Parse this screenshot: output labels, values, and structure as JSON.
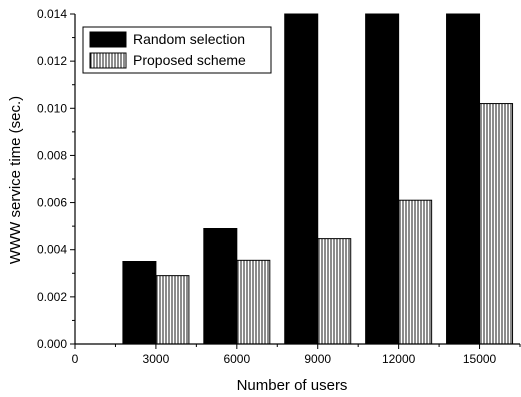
{
  "chart_data": {
    "type": "bar",
    "xlabel": "Number of users",
    "ylabel": "WWW service time (sec.)",
    "categories": [
      "3000",
      "6000",
      "9000",
      "12000",
      "15000"
    ],
    "x_values": [
      3000,
      6000,
      9000,
      12000,
      15000
    ],
    "xlim": [
      0,
      16500
    ],
    "ylim": [
      0,
      0.014
    ],
    "x_ticks": [
      "0",
      "3000",
      "6000",
      "9000",
      "12000",
      "15000"
    ],
    "y_ticks": [
      "0.000",
      "0.002",
      "0.004",
      "0.006",
      "0.008",
      "0.010",
      "0.012",
      "0.014"
    ],
    "series": [
      {
        "name": "Random selection",
        "values": [
          0.0035,
          0.0049,
          0.014,
          0.014,
          0.014
        ],
        "fill": "solid",
        "color": "#000000"
      },
      {
        "name": "Proposed scheme",
        "values": [
          0.0029,
          0.00355,
          0.00447,
          0.0061,
          0.0102
        ],
        "fill": "vertical-hatch",
        "color": "#000000"
      }
    ],
    "legend_position": "top-left",
    "grid": false
  }
}
